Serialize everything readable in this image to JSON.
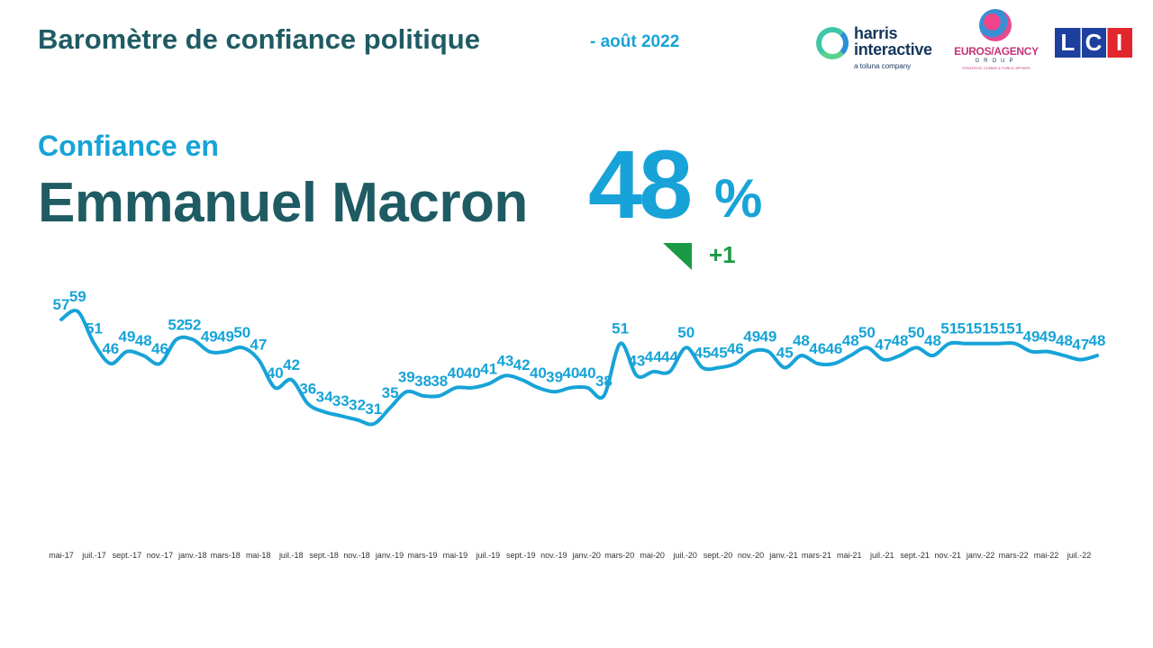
{
  "header": {
    "title": "Baromètre de confiance politique",
    "date": "- août 2022"
  },
  "logos": {
    "harris_line1": "harris",
    "harris_line2": "interactive",
    "harris_sub": "a toluna company",
    "euros": "EUROS/AGENCY",
    "euros_group": "GROUP",
    "euros_sub": "STRATEGIC COMMS & PUBLIC AFFAIRS",
    "lci": [
      "L",
      "C",
      "I"
    ]
  },
  "subject": {
    "label": "Confiance en",
    "name": "Emmanuel Macron",
    "value": "48",
    "unit": "%",
    "change": "+1"
  },
  "colors": {
    "line": "#17a3d8",
    "title": "#1f5b63",
    "accent": "#17a3d8",
    "positive": "#1a9a44"
  },
  "chart_data": {
    "type": "line",
    "title": "",
    "xlabel": "",
    "ylabel": "",
    "ylim": [
      31,
      59
    ],
    "grid": false,
    "x_tick_labels": [
      "mai-17",
      "juil.-17",
      "sept.-17",
      "nov.-17",
      "janv.-18",
      "mars-18",
      "mai-18",
      "juil.-18",
      "sept.-18",
      "nov.-18",
      "janv.-19",
      "mars-19",
      "mai-19",
      "juil.-19",
      "sept.-19",
      "nov.-19",
      "janv.-20",
      "mars-20",
      "mai-20",
      "juil.-20",
      "sept.-20",
      "nov.-20",
      "janv.-21",
      "mars-21",
      "mai-21",
      "juil.-21",
      "sept.-21",
      "nov.-21",
      "janv.-22",
      "mars-22",
      "mai-22",
      "juil.-22"
    ],
    "series": [
      {
        "values": [
          57,
          59,
          51,
          46,
          49,
          48,
          46,
          52,
          52,
          49,
          49,
          50,
          47,
          40,
          42,
          36,
          34,
          33,
          32,
          31,
          35,
          39,
          38,
          38,
          40,
          40,
          41,
          43,
          42,
          40,
          39,
          40,
          40,
          38,
          51,
          43,
          44,
          44,
          50,
          45,
          45,
          46,
          49,
          49,
          45,
          48,
          46,
          46,
          48,
          50,
          47,
          48,
          50,
          48,
          51,
          51,
          51,
          51,
          51,
          49,
          49,
          48,
          47,
          48
        ]
      }
    ]
  }
}
